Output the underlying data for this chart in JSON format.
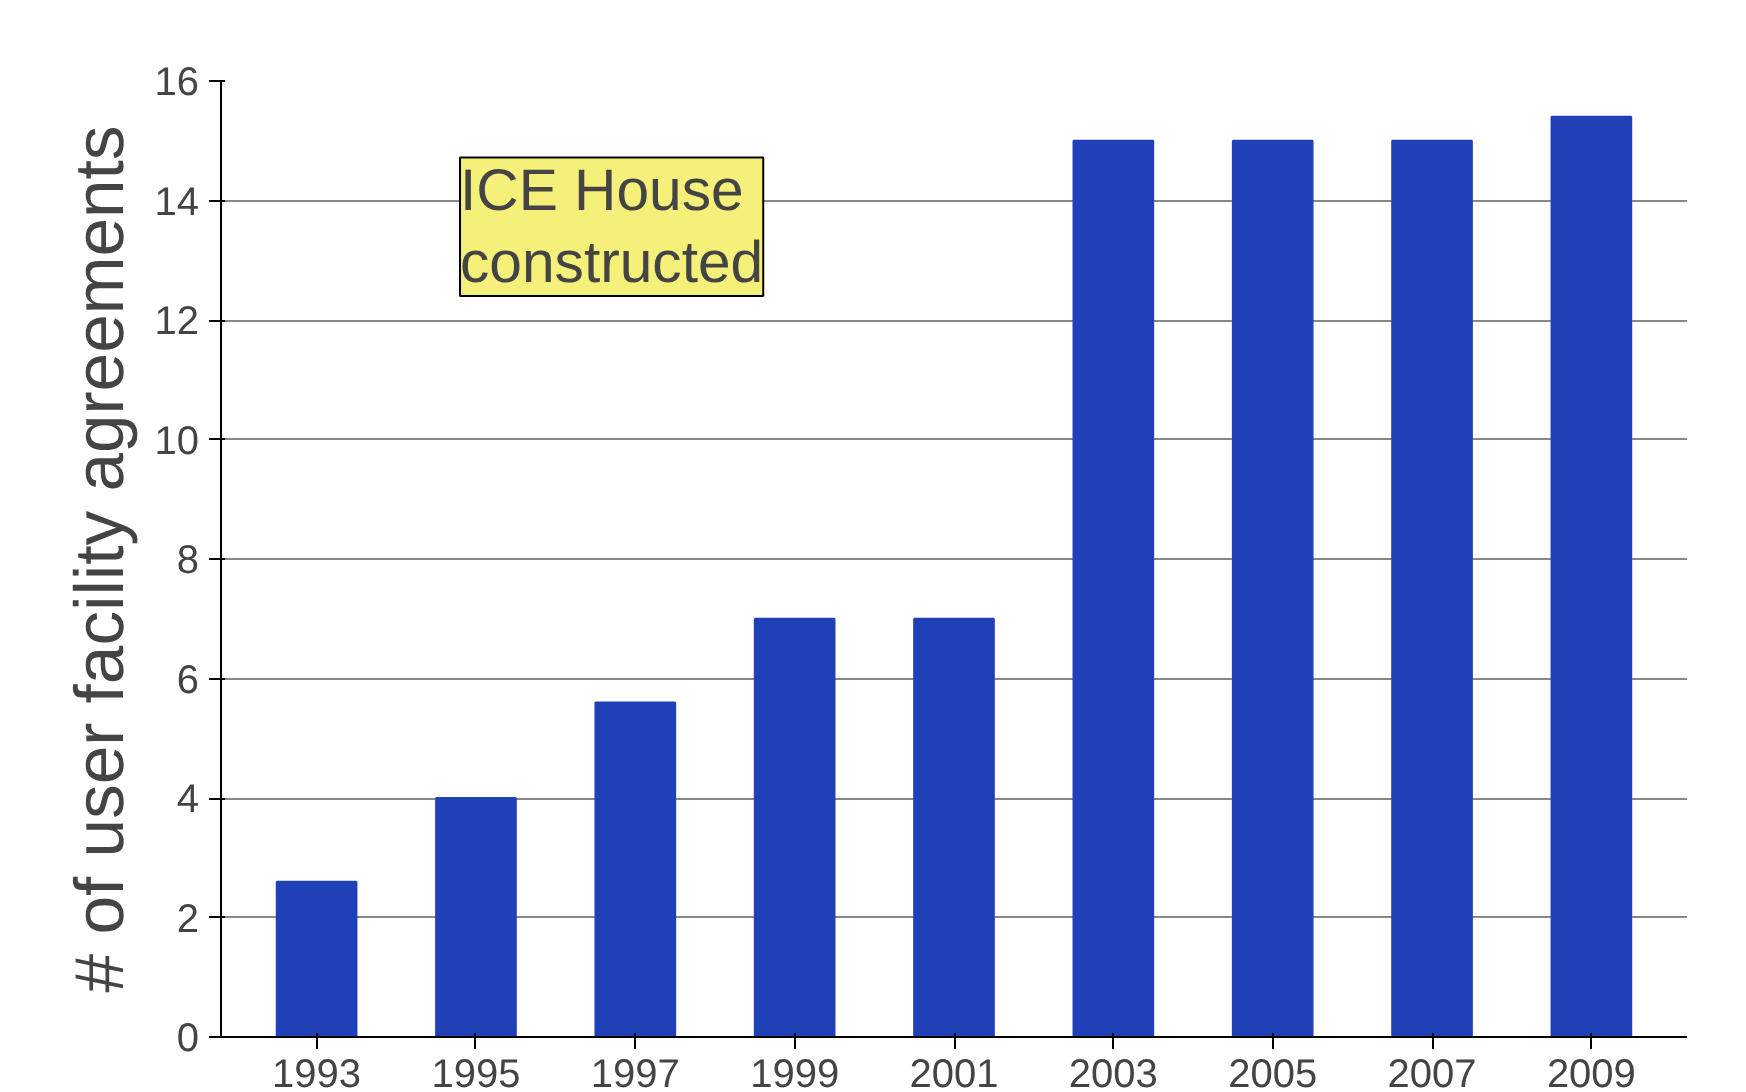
{
  "chart_data": {
    "type": "bar",
    "ylabel": "# of user facility agreements",
    "categories": [
      "1993",
      "1995",
      "1997",
      "1999",
      "2001",
      "2003",
      "2005",
      "2007",
      "2009"
    ],
    "values": [
      2.6,
      4,
      5.6,
      7,
      7,
      15,
      15,
      15,
      15.4
    ],
    "color": "#2040b8",
    "ylim": [
      0,
      16
    ],
    "yticks": [
      0,
      2,
      4,
      6,
      8,
      10,
      12,
      14,
      16
    ],
    "grid": "y",
    "annotations": [
      "ICE House\nconstructed"
    ]
  }
}
